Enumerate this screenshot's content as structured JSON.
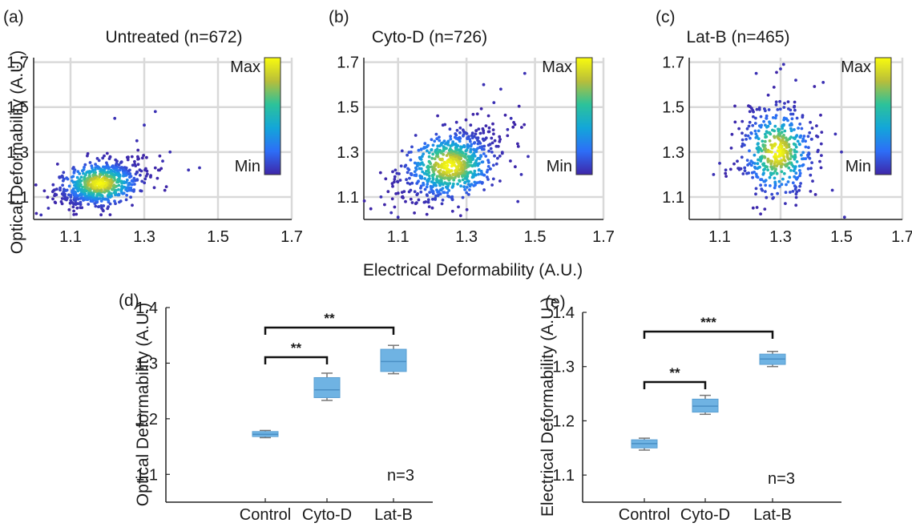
{
  "figure": {
    "shared_xlabel": "Electrical Deformability (A.U.)",
    "shared_ylabel": "Optical Deformability (A.U.)"
  },
  "chart_data": [
    {
      "panel": "(a)",
      "type": "scatter",
      "title": "Untreated (n=672)",
      "n": 672,
      "xlabel": "Electrical Deformability (A.U.)",
      "ylabel": "Optical Deformability (A.U.)",
      "xlim": [
        1.0,
        1.7
      ],
      "ylim": [
        1.0,
        1.72
      ],
      "xticks": [
        "1.1",
        "1.3",
        "1.5",
        "1.7"
      ],
      "yticks": [
        "1.1",
        "1.3",
        "1.5",
        "1.7"
      ],
      "grid": true,
      "color_scale": {
        "description": "point density",
        "max_label": "Max",
        "min_label": "Min"
      },
      "density_center": [
        1.18,
        1.16
      ],
      "spread": [
        0.06,
        0.055
      ],
      "points": [
        [
          1.33,
          1.48
        ],
        [
          1.37,
          1.3
        ],
        [
          1.45,
          1.23
        ],
        [
          1.42,
          1.22
        ],
        [
          1.22,
          1.45
        ],
        [
          1.02,
          1.02
        ],
        [
          1.3,
          1.42
        ],
        [
          1.35,
          1.26
        ],
        [
          1.04,
          1.05
        ],
        [
          1.28,
          1.35
        ]
      ]
    },
    {
      "panel": "(b)",
      "type": "scatter",
      "title": "Cyto-D (n=726)",
      "n": 726,
      "xlabel": "Electrical Deformability (A.U.)",
      "ylabel": "Optical Deformability (A.U.)",
      "xlim": [
        1.0,
        1.7
      ],
      "ylim": [
        1.0,
        1.72
      ],
      "xticks": [
        "1.1",
        "1.3",
        "1.5",
        "1.7"
      ],
      "yticks": [
        "1.1",
        "1.3",
        "1.5",
        "1.7"
      ],
      "grid": true,
      "color_scale": {
        "description": "point density",
        "max_label": "Max",
        "min_label": "Min"
      },
      "density_center": [
        1.25,
        1.24
      ],
      "spread": [
        0.075,
        0.085
      ],
      "points": [
        [
          1.47,
          1.65
        ],
        [
          1.4,
          1.58
        ],
        [
          1.38,
          1.52
        ],
        [
          1.43,
          1.45
        ],
        [
          1.45,
          1.08
        ],
        [
          1.08,
          1.03
        ],
        [
          1.1,
          1.01
        ],
        [
          1.46,
          1.2
        ],
        [
          1.42,
          1.4
        ],
        [
          1.35,
          1.6
        ],
        [
          1.05,
          1.1
        ],
        [
          1.48,
          1.28
        ]
      ]
    },
    {
      "panel": "(c)",
      "type": "scatter",
      "title": "Lat-B (n=465)",
      "n": 465,
      "xlabel": "Electrical Deformability (A.U.)",
      "ylabel": "Optical Deformability (A.U.)",
      "xlim": [
        1.0,
        1.7
      ],
      "ylim": [
        1.0,
        1.72
      ],
      "xticks": [
        "1.1",
        "1.3",
        "1.5",
        "1.7"
      ],
      "yticks": [
        "1.1",
        "1.3",
        "1.5",
        "1.7"
      ],
      "grid": true,
      "color_scale": {
        "description": "point density",
        "max_label": "Max",
        "min_label": "Min"
      },
      "density_center": [
        1.29,
        1.3
      ],
      "spread": [
        0.065,
        0.11
      ],
      "points": [
        [
          1.31,
          1.69
        ],
        [
          1.3,
          1.67
        ],
        [
          1.44,
          1.61
        ],
        [
          1.51,
          1.01
        ],
        [
          1.08,
          1.2
        ],
        [
          1.48,
          1.38
        ],
        [
          1.47,
          1.13
        ],
        [
          1.22,
          1.65
        ],
        [
          1.35,
          1.62
        ],
        [
          1.1,
          1.25
        ],
        [
          1.12,
          1.22
        ],
        [
          1.5,
          1.3
        ]
      ]
    },
    {
      "panel": "(d)",
      "type": "box",
      "xlabel": "",
      "ylabel": "Optical Deformability (A.U.)",
      "categories": [
        "Control",
        "Cyto-D",
        "Lat-B"
      ],
      "ylim": [
        1.05,
        1.4
      ],
      "yticks": [
        "1.1",
        "1.2",
        "1.3",
        "1.4"
      ],
      "grid": false,
      "boxes": [
        {
          "category": "Control",
          "min": 1.166,
          "q1": 1.168,
          "median": 1.172,
          "q3": 1.177,
          "max": 1.179
        },
        {
          "category": "Cyto-D",
          "min": 1.233,
          "q1": 1.238,
          "median": 1.252,
          "q3": 1.274,
          "max": 1.282
        },
        {
          "category": "Lat-B",
          "min": 1.281,
          "q1": 1.285,
          "median": 1.303,
          "q3": 1.325,
          "max": 1.332
        }
      ],
      "significance": [
        {
          "from": "Control",
          "to": "Cyto-D",
          "label": "**"
        },
        {
          "from": "Control",
          "to": "Lat-B",
          "label": "**"
        }
      ],
      "annotation": "n=3"
    },
    {
      "panel": "(e)",
      "type": "box",
      "xlabel": "",
      "ylabel": "Electrical Deformability (A.U.)",
      "categories": [
        "Control",
        "Cyto-D",
        "Lat-B"
      ],
      "ylim": [
        1.05,
        1.4
      ],
      "yticks": [
        "1.1",
        "1.2",
        "1.3",
        "1.4"
      ],
      "grid": false,
      "boxes": [
        {
          "category": "Control",
          "min": 1.146,
          "q1": 1.15,
          "median": 1.158,
          "q3": 1.165,
          "max": 1.168
        },
        {
          "category": "Cyto-D",
          "min": 1.212,
          "q1": 1.216,
          "median": 1.227,
          "q3": 1.24,
          "max": 1.247
        },
        {
          "category": "Lat-B",
          "min": 1.3,
          "q1": 1.304,
          "median": 1.314,
          "q3": 1.323,
          "max": 1.328
        }
      ],
      "significance": [
        {
          "from": "Control",
          "to": "Cyto-D",
          "label": "**"
        },
        {
          "from": "Control",
          "to": "Lat-B",
          "label": "***"
        }
      ],
      "annotation": "n=3"
    }
  ]
}
